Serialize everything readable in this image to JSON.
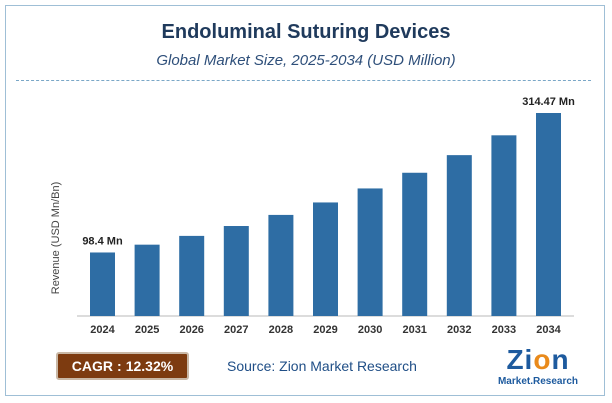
{
  "title": "Endoluminal Suturing Devices",
  "subtitle": "Global Market Size, 2025-2034 (USD Million)",
  "cagr": {
    "label": "CAGR",
    "separator": ":",
    "value": "12.32%"
  },
  "source": "Source: Zion Market Research",
  "logo": {
    "brand": "Zion",
    "tagline": "Market.Research"
  },
  "colors": {
    "bar": "#2e6da4",
    "title": "#1f3a5c",
    "cagr_bg": "#7d3b10",
    "logo_orange": "#e98a1b"
  },
  "chart_data": {
    "type": "bar",
    "ylabel": "Revenue (USD Mn/Bn)",
    "categories": [
      "2024",
      "2025",
      "2026",
      "2027",
      "2028",
      "2029",
      "2030",
      "2031",
      "2032",
      "2033",
      "2034"
    ],
    "values": [
      98.4,
      110.5,
      124.1,
      139.4,
      156.6,
      175.9,
      197.6,
      221.9,
      249.2,
      279.9,
      314.47
    ],
    "data_labels": [
      {
        "index": 0,
        "text": "98.4 Mn"
      },
      {
        "index": 10,
        "text": "314.47 Mn"
      }
    ],
    "ylim": [
      0,
      340
    ],
    "grid": false,
    "legend": "none"
  }
}
